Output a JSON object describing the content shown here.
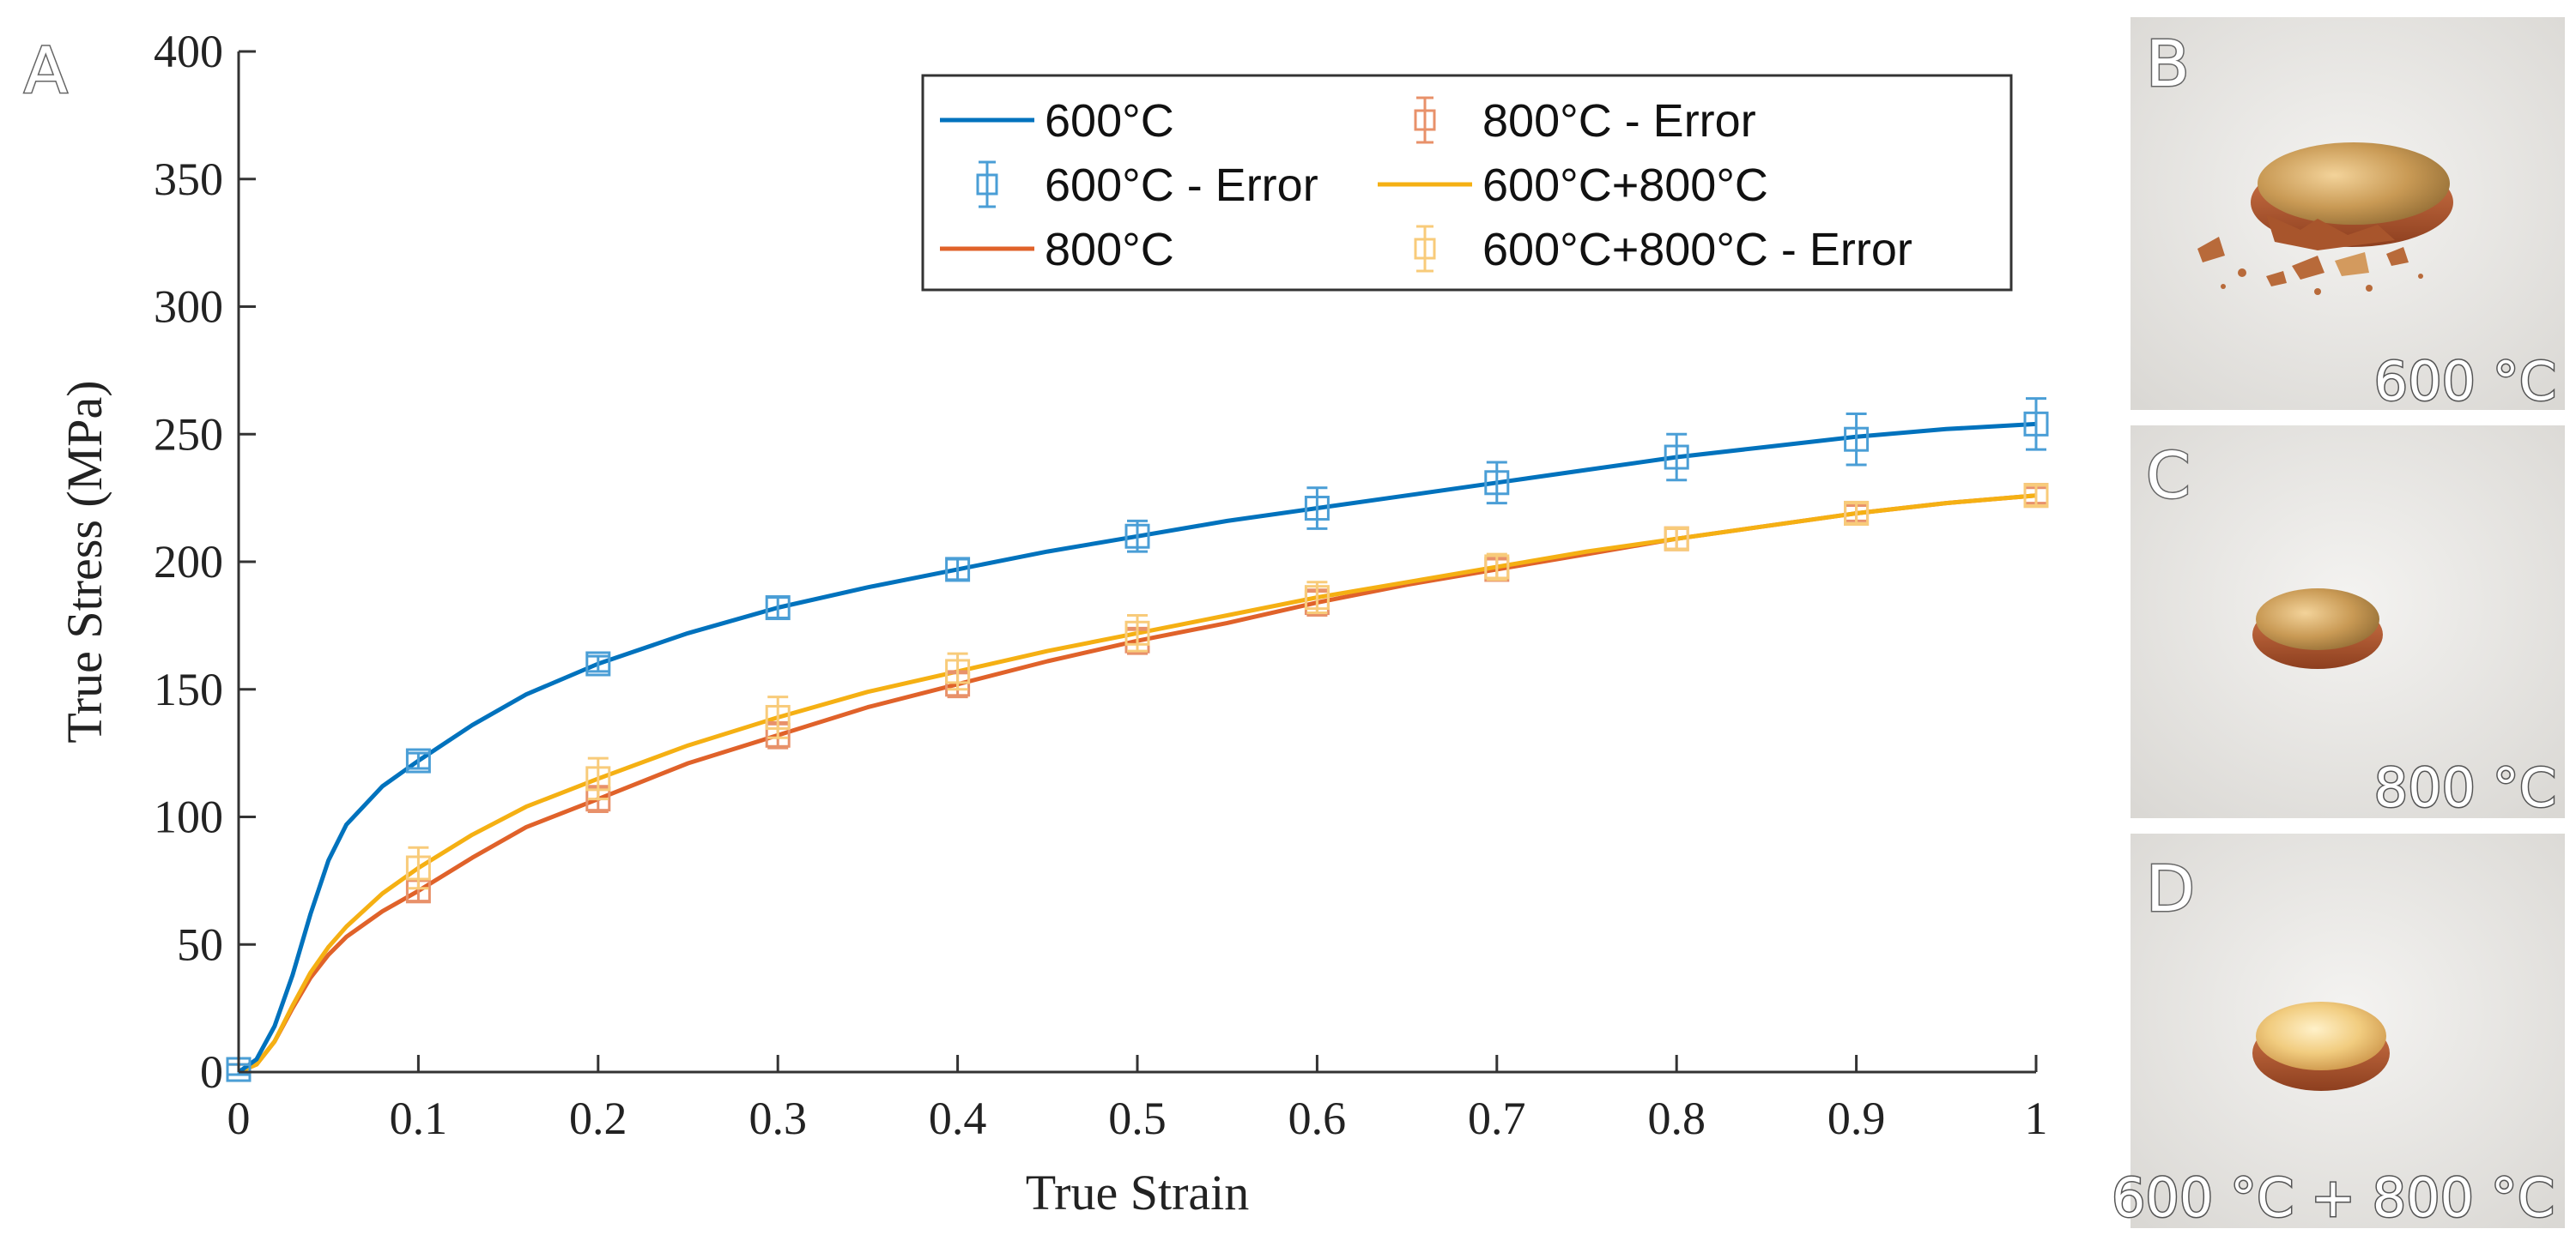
{
  "panels": {
    "A": "A",
    "B": "B",
    "C": "C",
    "D": "D"
  },
  "photos": [
    {
      "panel": "B",
      "label": "600 °C",
      "state": "fractured"
    },
    {
      "panel": "C",
      "label": "800 °C",
      "state": "intact"
    },
    {
      "panel": "D",
      "label": "600 °C + 800 °C",
      "state": "intact"
    }
  ],
  "colors": {
    "s600": "#0072bd",
    "s800": "#e0622a",
    "s600_800": "#f5b013",
    "err600": "#4a9ed6",
    "err800": "#e8916a",
    "err600_800": "#f8cb7a"
  },
  "chart_data": {
    "type": "line",
    "xlabel": "True Strain",
    "ylabel": "True Stress (MPa)",
    "xlim": [
      0,
      1
    ],
    "ylim": [
      0,
      400
    ],
    "xticks": [
      0,
      0.1,
      0.2,
      0.3,
      0.4,
      0.5,
      0.6,
      0.7,
      0.8,
      0.9,
      1
    ],
    "xtick_labels": [
      "0",
      "0.1",
      "0.2",
      "0.3",
      "0.4",
      "0.5",
      "0.6",
      "0.7",
      "0.8",
      "0.9",
      "1"
    ],
    "yticks": [
      0,
      50,
      100,
      150,
      200,
      250,
      300,
      350,
      400
    ],
    "ytick_labels": [
      "0",
      "50",
      "100",
      "150",
      "200",
      "250",
      "300",
      "350",
      "400"
    ],
    "legend_position": "top-right",
    "legend_order": [
      "s600",
      "e600",
      "s800",
      "e800",
      "s600_800",
      "e600_800"
    ],
    "series": [
      {
        "id": "s600",
        "name": "600°C",
        "kind": "curve",
        "color_key": "s600",
        "points": [
          [
            0,
            0
          ],
          [
            0.01,
            5
          ],
          [
            0.02,
            18
          ],
          [
            0.03,
            38
          ],
          [
            0.04,
            62
          ],
          [
            0.05,
            83
          ],
          [
            0.06,
            97
          ],
          [
            0.08,
            112
          ],
          [
            0.1,
            122
          ],
          [
            0.13,
            136
          ],
          [
            0.16,
            148
          ],
          [
            0.2,
            160
          ],
          [
            0.25,
            172
          ],
          [
            0.3,
            182
          ],
          [
            0.35,
            190
          ],
          [
            0.4,
            197
          ],
          [
            0.45,
            204
          ],
          [
            0.5,
            210
          ],
          [
            0.55,
            216
          ],
          [
            0.6,
            221
          ],
          [
            0.65,
            226
          ],
          [
            0.7,
            231
          ],
          [
            0.75,
            236
          ],
          [
            0.8,
            241
          ],
          [
            0.85,
            245
          ],
          [
            0.9,
            249
          ],
          [
            0.95,
            252
          ],
          [
            1.0,
            254
          ]
        ]
      },
      {
        "id": "s800",
        "name": "800°C",
        "kind": "curve",
        "color_key": "s800",
        "points": [
          [
            0,
            0
          ],
          [
            0.01,
            3
          ],
          [
            0.02,
            12
          ],
          [
            0.03,
            25
          ],
          [
            0.04,
            37
          ],
          [
            0.05,
            46
          ],
          [
            0.06,
            53
          ],
          [
            0.08,
            63
          ],
          [
            0.1,
            71
          ],
          [
            0.13,
            84
          ],
          [
            0.16,
            96
          ],
          [
            0.2,
            107
          ],
          [
            0.25,
            121
          ],
          [
            0.3,
            132
          ],
          [
            0.35,
            143
          ],
          [
            0.4,
            152
          ],
          [
            0.45,
            161
          ],
          [
            0.5,
            169
          ],
          [
            0.55,
            176
          ],
          [
            0.6,
            184
          ],
          [
            0.65,
            191
          ],
          [
            0.7,
            197
          ],
          [
            0.75,
            203
          ],
          [
            0.8,
            209
          ],
          [
            0.85,
            214
          ],
          [
            0.9,
            219
          ],
          [
            0.95,
            223
          ],
          [
            1.0,
            226
          ]
        ]
      },
      {
        "id": "s600_800",
        "name": "600°C+800°C",
        "kind": "curve",
        "color_key": "s600_800",
        "points": [
          [
            0,
            0
          ],
          [
            0.01,
            3
          ],
          [
            0.02,
            12
          ],
          [
            0.03,
            26
          ],
          [
            0.04,
            39
          ],
          [
            0.05,
            49
          ],
          [
            0.06,
            57
          ],
          [
            0.08,
            70
          ],
          [
            0.1,
            80
          ],
          [
            0.13,
            93
          ],
          [
            0.16,
            104
          ],
          [
            0.2,
            115
          ],
          [
            0.25,
            128
          ],
          [
            0.3,
            139
          ],
          [
            0.35,
            149
          ],
          [
            0.4,
            157
          ],
          [
            0.45,
            165
          ],
          [
            0.5,
            172
          ],
          [
            0.55,
            179
          ],
          [
            0.6,
            186
          ],
          [
            0.65,
            192
          ],
          [
            0.7,
            198
          ],
          [
            0.75,
            204
          ],
          [
            0.8,
            209
          ],
          [
            0.85,
            214
          ],
          [
            0.9,
            219
          ],
          [
            0.95,
            223
          ],
          [
            1.0,
            226
          ]
        ]
      },
      {
        "id": "e600",
        "name": "600°C - Error",
        "kind": "error",
        "color_key": "err600",
        "x": [
          0,
          0.1,
          0.2,
          0.3,
          0.4,
          0.5,
          0.6,
          0.7,
          0.8,
          0.9,
          1
        ],
        "y": [
          1,
          122,
          160,
          182,
          197,
          210,
          221,
          231,
          241,
          248,
          254
        ],
        "err": [
          2,
          3,
          3,
          4,
          4,
          6,
          8,
          8,
          9,
          10,
          10
        ]
      },
      {
        "id": "e800",
        "name": "800°C - Error",
        "kind": "error",
        "color_key": "err800",
        "x": [
          0,
          0.1,
          0.2,
          0.3,
          0.4,
          0.5,
          0.6,
          0.7,
          0.8,
          0.9,
          1
        ],
        "y": [
          1,
          71,
          107,
          132,
          152,
          169,
          184,
          197,
          209,
          219,
          226
        ],
        "err": [
          2,
          4,
          5,
          5,
          5,
          5,
          5,
          4,
          4,
          3,
          3
        ]
      },
      {
        "id": "e600_800",
        "name": "600°C+800°C - Error",
        "kind": "error",
        "color_key": "err600_800",
        "x": [
          0,
          0.1,
          0.2,
          0.3,
          0.4,
          0.5,
          0.6,
          0.7,
          0.8,
          0.9,
          1
        ],
        "y": [
          1,
          80,
          115,
          139,
          157,
          172,
          186,
          198,
          209,
          219,
          226
        ],
        "err": [
          2,
          8,
          8,
          8,
          7,
          7,
          6,
          5,
          4,
          4,
          4
        ]
      }
    ]
  }
}
